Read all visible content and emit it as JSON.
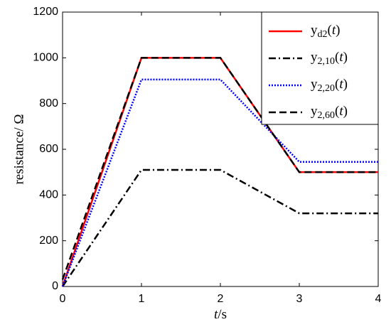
{
  "chart_data": {
    "type": "line",
    "x_label": "t/s",
    "y_label": "resistance/ Ω",
    "x": [
      0,
      1,
      2,
      3,
      4
    ],
    "series": [
      {
        "name": "yd2(t)",
        "color": "#ff0000",
        "dash": "solid",
        "values": [
          0,
          1000,
          1000,
          500,
          500
        ]
      },
      {
        "name": "y2,10(t)",
        "color": "#000000",
        "dash": "dashdot",
        "values": [
          0,
          510,
          510,
          320,
          320
        ]
      },
      {
        "name": "y2,20(t)",
        "color": "#0000ff",
        "dash": "dotted",
        "values": [
          0,
          905,
          905,
          545,
          545
        ]
      },
      {
        "name": "y2,60(t)",
        "color": "#000000",
        "dash": "dashed",
        "values": [
          30,
          1000,
          1000,
          500,
          500
        ]
      }
    ],
    "xlim": [
      0,
      4
    ],
    "xticks": [
      0,
      1,
      2,
      3,
      4
    ],
    "ylim": [
      0,
      1200
    ],
    "yticks": [
      0,
      200,
      400,
      600,
      800,
      1000,
      1200
    ],
    "legend": "top-right",
    "grid": false
  }
}
